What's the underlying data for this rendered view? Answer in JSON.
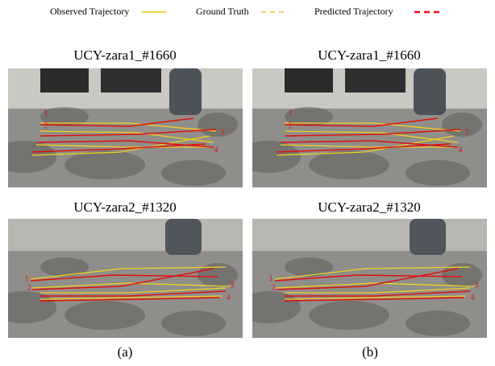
{
  "legend": [
    {
      "label": "Observed Trajectory"
    },
    {
      "label": "Ground Truth"
    },
    {
      "label": "Predicted Trajectory"
    }
  ],
  "panels": [
    {
      "title": "UCY-zara1_#1660",
      "agent_labels": [
        "1",
        "2",
        "3",
        "4"
      ]
    },
    {
      "title": "UCY-zara1_#1660",
      "agent_labels": [
        "1",
        "2",
        "3",
        "4"
      ]
    },
    {
      "title": "UCY-zara2_#1320",
      "agent_labels": [
        "1",
        "2",
        "3",
        "4"
      ]
    },
    {
      "title": "UCY-zara2_#1320",
      "agent_labels": [
        "1",
        "2",
        "3",
        "4"
      ]
    }
  ],
  "captions": [
    "(a)",
    "(b)"
  ]
}
